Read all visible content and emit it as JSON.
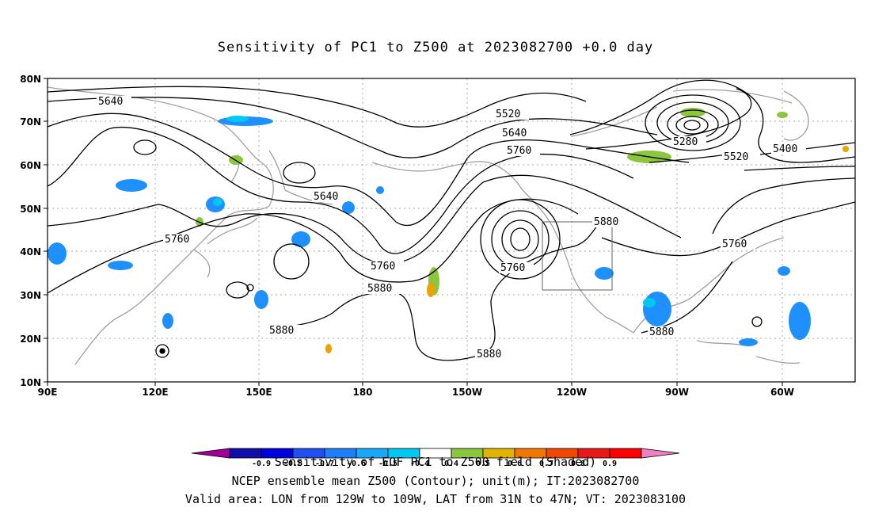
{
  "title": "Sensitivity of PC1 to Z500 at 2023082700 +0.0 day",
  "map": {
    "lon_ticks": [
      "90E",
      "120E",
      "150E",
      "180",
      "150W",
      "120W",
      "90W",
      "60W"
    ],
    "lat_ticks": [
      "80N",
      "70N",
      "60N",
      "50N",
      "40N",
      "30N",
      "20N",
      "10N"
    ],
    "lon_range": [
      "90E",
      "50W"
    ],
    "lat_range": [
      "10N",
      "80N"
    ],
    "gridlines": true,
    "box": {
      "lon_from": "129W",
      "lon_to": "109W",
      "lat_from": "31N",
      "lat_to": "47N"
    },
    "contour_labels": [
      "5640",
      "5520",
      "5640",
      "5760",
      "5280",
      "5400",
      "5520",
      "5640",
      "5760",
      "5880",
      "5760",
      "5880",
      "5880",
      "5760",
      "5880",
      "5880"
    ],
    "colors": {
      "coast": "#a0a0a0",
      "contour": "#000000",
      "shade_blue": "#1e90ff",
      "shade_cyan": "#00c8f0",
      "shade_green": "#8cc63e",
      "shade_orange": "#f0a000"
    }
  },
  "colorbar": {
    "labels": [
      "-0.9",
      "-0.8",
      "-0.7",
      "-0.6",
      "-0.5",
      "-0.4",
      "0.4",
      "0.5",
      "0.6",
      "0.7",
      "0.8",
      "0.9"
    ],
    "colors": [
      "#a0009a",
      "#1010a8",
      "#0000dd",
      "#2050f0",
      "#1e7ef8",
      "#1aa8f8",
      "#00c8f0",
      "#ffffff",
      "#8cc63e",
      "#e0b400",
      "#f07800",
      "#f04800",
      "#e81818",
      "#ff0000",
      "#f080c0"
    ]
  },
  "captions": {
    "line1": "Sensitivity of EOF PC1 to Z500 field (Shaded)",
    "line2": "NCEP ensemble mean Z500 (Contour); unit(m); IT:2023082700",
    "line3": "Valid area: LON from 129W to 109W, LAT from 31N to 47N; VT: 2023083100"
  }
}
